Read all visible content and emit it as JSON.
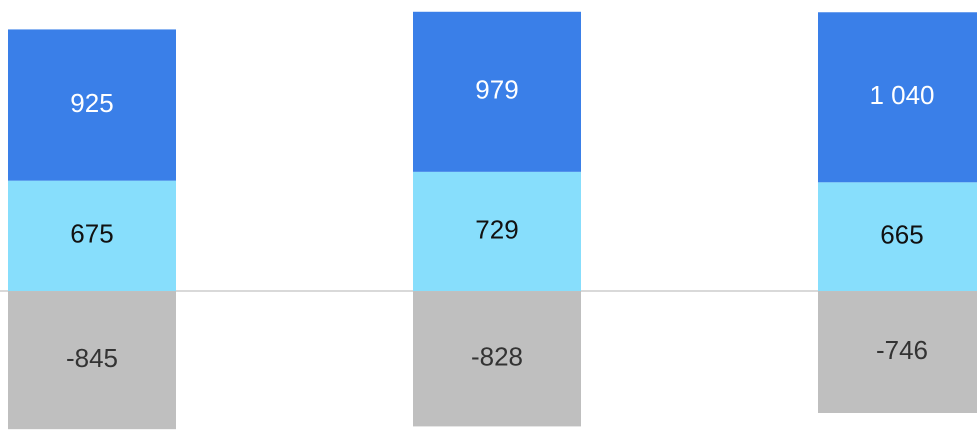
{
  "chart_data": {
    "type": "stacked_bar",
    "categories": [
      null,
      null,
      null
    ],
    "series": [
      {
        "color": "#87defc",
        "values": [
          675,
          729,
          665
        ]
      },
      {
        "color": "#3a7fe8",
        "values": [
          925,
          979,
          1040
        ],
        "value_labels": [
          "925",
          "979",
          "1 040"
        ]
      },
      {
        "color": "#bfbfbf",
        "values": [
          -845,
          -828,
          -746
        ]
      }
    ],
    "ylim": [
      -850,
      1780
    ]
  }
}
